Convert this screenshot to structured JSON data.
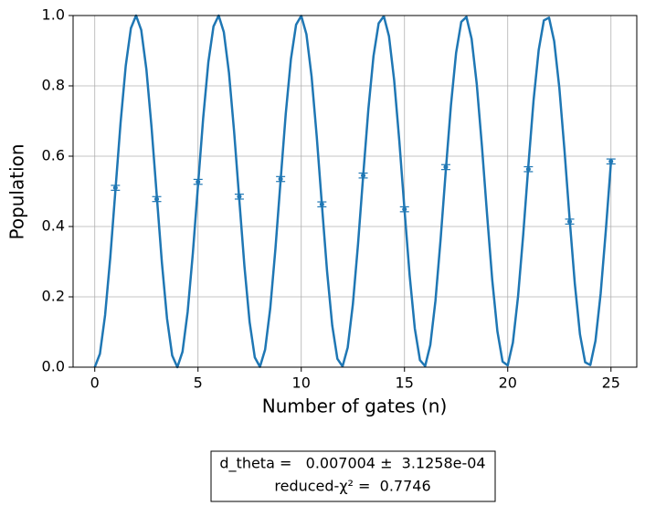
{
  "chart_data": {
    "type": "line",
    "xlabel": "Number of gates (n)",
    "ylabel": "Population",
    "xlim": [
      -1.05,
      26.25
    ],
    "ylim": [
      0,
      1
    ],
    "xticks": [
      0,
      5,
      10,
      15,
      20,
      25
    ],
    "yticks": [
      {
        "value": 0,
        "label": "0.0"
      },
      {
        "value": 0.2,
        "label": "0.2"
      },
      {
        "value": 0.4,
        "label": "0.4"
      },
      {
        "value": 0.6,
        "label": "0.6"
      },
      {
        "value": 0.8,
        "label": "0.8"
      },
      {
        "value": 1,
        "label": "1.0"
      }
    ],
    "grid": true,
    "series": [
      {
        "type": "line",
        "color": "#1f77b4",
        "x": [
          0,
          0.25,
          0.5,
          0.75,
          1,
          1.25,
          1.5,
          1.75,
          2,
          2.25,
          2.5,
          2.75,
          3,
          3.25,
          3.5,
          3.75,
          4,
          4.25,
          4.5,
          4.75,
          5,
          5.25,
          5.5,
          5.75,
          6,
          6.25,
          6.5,
          6.75,
          7,
          7.25,
          7.5,
          7.75,
          8,
          8.25,
          8.5,
          8.75,
          9,
          9.25,
          9.5,
          9.75,
          10,
          10.25,
          10.5,
          10.75,
          11,
          11.25,
          11.5,
          11.75,
          12,
          12.25,
          12.5,
          12.75,
          13,
          13.25,
          13.5,
          13.75,
          14,
          14.25,
          14.5,
          14.75,
          15,
          15.25,
          15.5,
          15.75,
          16,
          16.25,
          16.5,
          16.75,
          17,
          17.25,
          17.5,
          17.75,
          18,
          18.25,
          18.5,
          18.75,
          19,
          19.25,
          19.5,
          19.75,
          20,
          20.25,
          20.5,
          20.75,
          21,
          21.25,
          21.5,
          21.75,
          22,
          22.25,
          22.5,
          22.75,
          23,
          23.25,
          23.5,
          23.75,
          24,
          24.25,
          24.5,
          24.75,
          25
        ],
        "values": [
          0,
          0.038,
          0.148,
          0.311,
          0.503,
          0.695,
          0.857,
          0.964,
          1.0,
          0.959,
          0.847,
          0.682,
          0.49,
          0.298,
          0.138,
          0.033,
          0.0,
          0.044,
          0.158,
          0.324,
          0.517,
          0.708,
          0.867,
          0.969,
          1.0,
          0.953,
          0.837,
          0.669,
          0.476,
          0.286,
          0.128,
          0.028,
          0.001,
          0.05,
          0.168,
          0.337,
          0.531,
          0.721,
          0.876,
          0.974,
          0.999,
          0.947,
          0.827,
          0.656,
          0.462,
          0.273,
          0.119,
          0.024,
          0.002,
          0.056,
          0.179,
          0.35,
          0.545,
          0.733,
          0.885,
          0.978,
          0.998,
          0.941,
          0.816,
          0.643,
          0.448,
          0.261,
          0.11,
          0.02,
          0.003,
          0.063,
          0.189,
          0.364,
          0.559,
          0.745,
          0.894,
          0.982,
          0.996,
          0.934,
          0.805,
          0.629,
          0.434,
          0.248,
          0.102,
          0.016,
          0.005,
          0.07,
          0.201,
          0.377,
          0.573,
          0.758,
          0.902,
          0.986,
          0.994,
          0.927,
          0.794,
          0.616,
          0.42,
          0.237,
          0.093,
          0.014,
          0.006,
          0.075,
          0.209,
          0.388,
          0.583
        ]
      },
      {
        "type": "errorbar",
        "color": "#1f77b4",
        "x": [
          1,
          3,
          5,
          7,
          9,
          11,
          13,
          15,
          17,
          21,
          23,
          25
        ],
        "values": [
          0.51,
          0.478,
          0.527,
          0.485,
          0.535,
          0.463,
          0.545,
          0.449,
          0.569,
          0.563,
          0.414,
          0.585
        ],
        "errors": [
          0.007,
          0.007,
          0.007,
          0.007,
          0.007,
          0.007,
          0.007,
          0.007,
          0.007,
          0.007,
          0.007,
          0.007
        ]
      }
    ],
    "annotation": [
      "d_theta =   0.007004 ±  3.1258e-04",
      "reduced-χ² =  0.7746"
    ]
  }
}
